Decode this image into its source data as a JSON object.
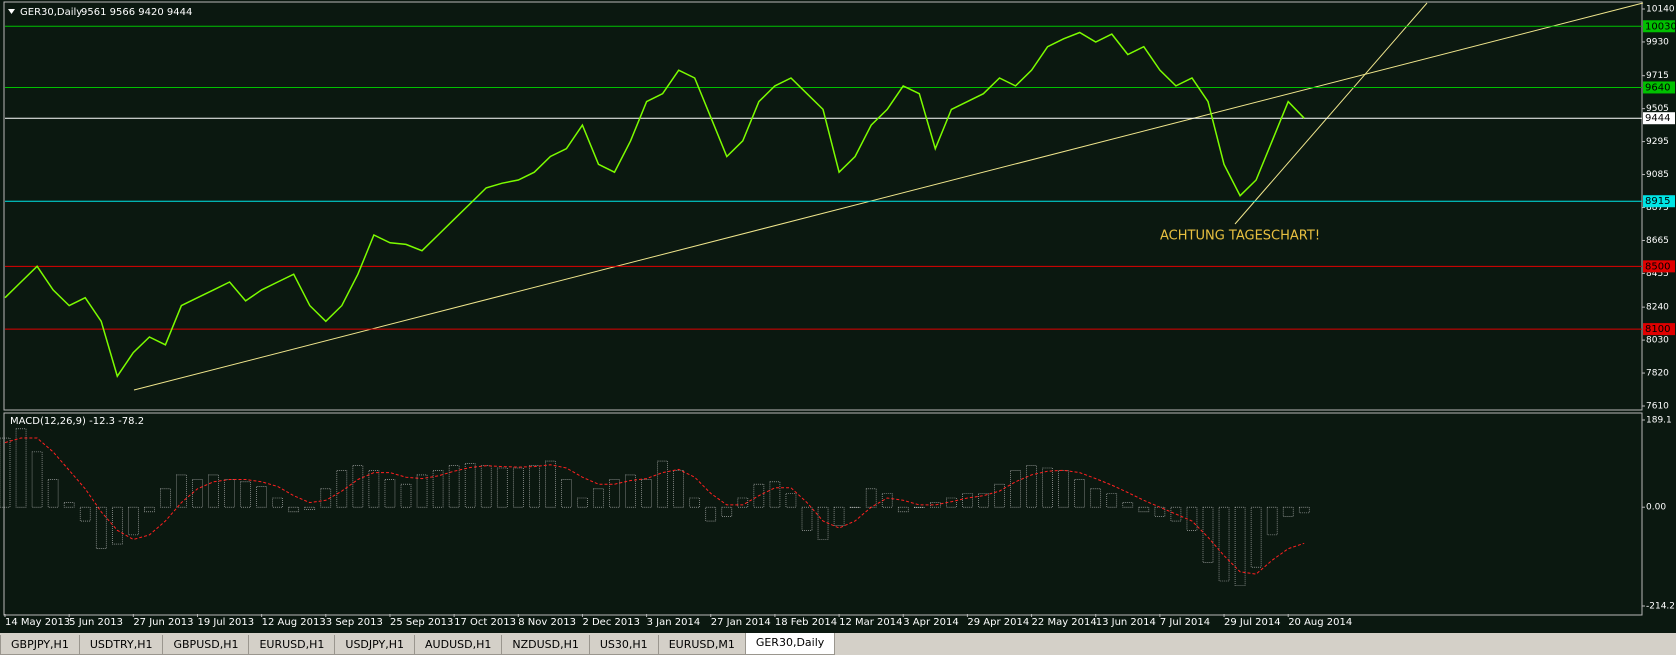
{
  "chart_data": [
    {
      "type": "line",
      "symbol": "GER30,Daily",
      "ohlc": "9561 9566 9420 9444",
      "annotation": "ACHTUNG TAGESCHART!",
      "color": "#7cfc00",
      "categories": [
        "14 May 2013",
        null,
        null,
        null,
        "5 Jun 2013",
        null,
        null,
        null,
        "27 Jun 2013",
        null,
        null,
        null,
        "19 Jul 2013",
        null,
        null,
        null,
        "12 Aug 2013",
        null,
        null,
        null,
        "3 Sep 2013",
        null,
        null,
        null,
        "25 Sep 2013",
        null,
        null,
        null,
        "17 Oct 2013",
        null,
        null,
        null,
        "8 Nov 2013",
        null,
        null,
        null,
        "2 Dec 2013",
        null,
        null,
        null,
        "3 Jan 2014",
        null,
        null,
        null,
        "27 Jan 2014",
        null,
        null,
        null,
        "18 Feb 2014",
        null,
        null,
        null,
        "12 Mar 2014",
        null,
        null,
        null,
        "3 Apr 2014",
        null,
        null,
        null,
        "29 Apr 2014",
        null,
        null,
        null,
        "22 May 2014",
        null,
        null,
        null,
        "13 Jun 2014",
        null,
        null,
        null,
        "7 Jul 2014",
        null,
        null,
        null,
        "29 Jul 2014",
        null,
        null,
        null,
        "20 Aug 2014",
        null
      ],
      "values": [
        8300,
        8400,
        8500,
        8350,
        8250,
        8300,
        8150,
        7800,
        7950,
        8050,
        8000,
        8250,
        8300,
        8350,
        8400,
        8280,
        8350,
        8400,
        8450,
        8250,
        8150,
        8250,
        8450,
        8700,
        8650,
        8640,
        8600,
        8700,
        8800,
        8900,
        9000,
        9030,
        9050,
        9100,
        9200,
        9250,
        9400,
        9150,
        9100,
        9300,
        9550,
        9600,
        9750,
        9700,
        9450,
        9200,
        9300,
        9550,
        9650,
        9700,
        9600,
        9500,
        9100,
        9200,
        9400,
        9500,
        9650,
        9600,
        9250,
        9500,
        9550,
        9600,
        9700,
        9650,
        9750,
        9900,
        9950,
        9990,
        9930,
        9980,
        9850,
        9900,
        9750,
        9650,
        9700,
        9550,
        9150,
        8950,
        9050,
        9300,
        9550,
        9444
      ],
      "ylim": [
        7610,
        10140
      ],
      "yticks": [
        7610,
        7820,
        8030,
        8240,
        8455,
        8665,
        8875,
        9085,
        9295,
        9505,
        9715,
        9930,
        10140
      ],
      "levels": [
        {
          "value": 10030,
          "color": "#00c000"
        },
        {
          "value": 9640,
          "color": "#00c000"
        },
        {
          "value": 9444,
          "color": "#ffffff"
        },
        {
          "value": 8915,
          "color": "#00e5e5"
        },
        {
          "value": 8500,
          "color": "#e00000"
        },
        {
          "value": 8100,
          "color": "#e00000"
        }
      ]
    },
    {
      "type": "macd",
      "title": "MACD(12,26,9) -12.3 -78.2",
      "series": [
        {
          "color": "#c8c8c8",
          "values": [
            150,
            170,
            120,
            60,
            10,
            -30,
            -90,
            -80,
            -60,
            -10,
            40,
            70,
            60,
            70,
            60,
            55,
            45,
            20,
            -10,
            -5,
            40,
            80,
            90,
            80,
            60,
            50,
            70,
            80,
            90,
            95,
            90,
            85,
            85,
            90,
            100,
            60,
            20,
            40,
            60,
            70,
            60,
            100,
            80,
            20,
            -30,
            -20,
            20,
            50,
            55,
            30,
            -50,
            -70,
            -40,
            0,
            40,
            30,
            -10,
            0,
            10,
            20,
            30,
            30,
            50,
            80,
            90,
            85,
            80,
            60,
            40,
            30,
            10,
            -10,
            -20,
            -30,
            -50,
            -120,
            -160,
            -170,
            -130,
            -60,
            -20,
            -12.3
          ]
        },
        {
          "color": "#ff2020",
          "values": [
            140,
            150,
            150,
            120,
            80,
            40,
            -10,
            -50,
            -70,
            -60,
            -30,
            10,
            40,
            55,
            60,
            60,
            55,
            45,
            25,
            10,
            15,
            35,
            60,
            75,
            75,
            65,
            62,
            68,
            78,
            86,
            90,
            88,
            87,
            88,
            92,
            85,
            65,
            50,
            50,
            58,
            62,
            75,
            82,
            65,
            30,
            5,
            5,
            25,
            42,
            42,
            10,
            -30,
            -45,
            -30,
            0,
            20,
            15,
            5,
            5,
            12,
            20,
            25,
            35,
            55,
            70,
            78,
            80,
            75,
            62,
            48,
            32,
            15,
            0,
            -15,
            -30,
            -65,
            -105,
            -140,
            -145,
            -115,
            -90,
            -78.2
          ]
        }
      ],
      "ylim": [
        -214.2,
        189.1
      ],
      "yticks": [
        -214.2,
        {
          "value": 0,
          "label": "0.00"
        },
        189.1
      ]
    }
  ],
  "tabs": [
    "GBPJPY,H1",
    "USDTRY,H1",
    "GBPUSD,H1",
    "EURUSD,H1",
    "USDJPY,H1",
    "AUDUSD,H1",
    "NZDUSD,H1",
    "US30,H1",
    "EURUSD,M1",
    "GER30,Daily"
  ]
}
